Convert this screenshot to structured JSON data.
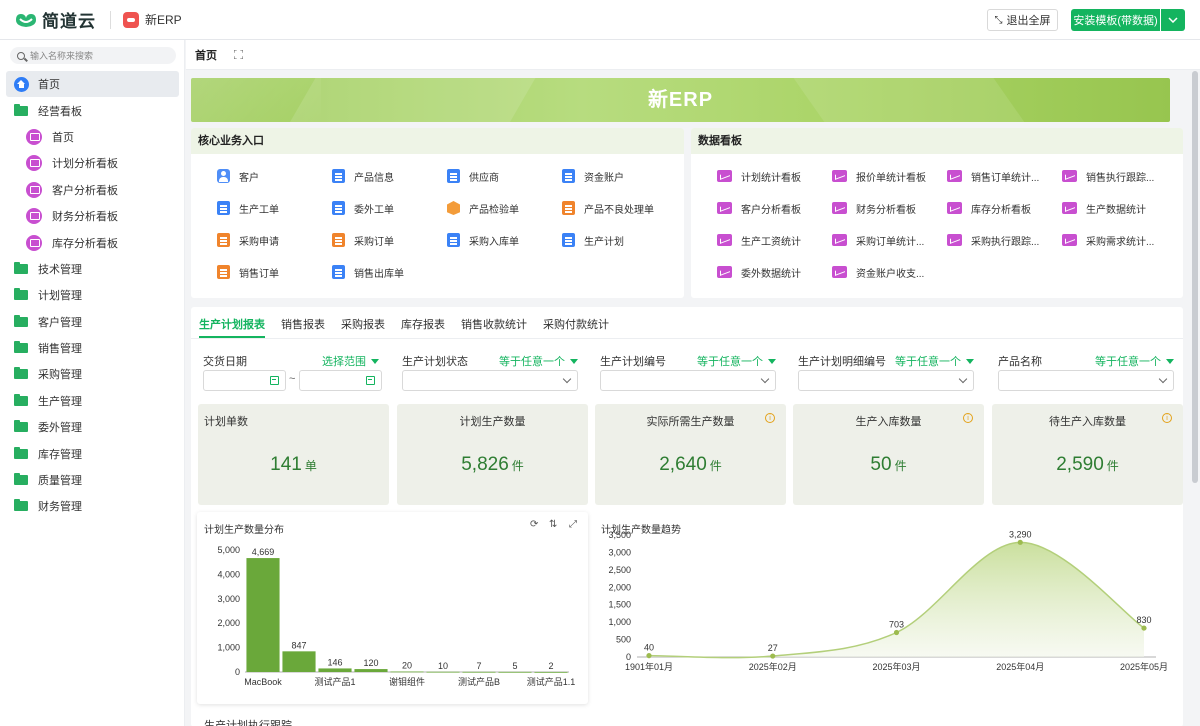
{
  "topbar": {
    "brand": "简道云",
    "app_name": "新ERP",
    "exit_fullscreen": "退出全屏",
    "install_template": "安装模板(带数据)"
  },
  "sidebar": {
    "search_placeholder": "输入名称来搜索",
    "items": [
      {
        "label": "首页",
        "icon": "home-icon"
      },
      {
        "label": "经营看板",
        "icon": "folder-icon"
      },
      {
        "label": "首页",
        "icon": "dashboard-icon"
      },
      {
        "label": "计划分析看板",
        "icon": "dashboard-icon"
      },
      {
        "label": "客户分析看板",
        "icon": "dashboard-icon"
      },
      {
        "label": "财务分析看板",
        "icon": "dashboard-icon"
      },
      {
        "label": "库存分析看板",
        "icon": "dashboard-icon"
      },
      {
        "label": "技术管理",
        "icon": "folder-icon"
      },
      {
        "label": "计划管理",
        "icon": "folder-icon"
      },
      {
        "label": "客户管理",
        "icon": "folder-icon"
      },
      {
        "label": "销售管理",
        "icon": "folder-icon"
      },
      {
        "label": "采购管理",
        "icon": "folder-icon"
      },
      {
        "label": "生产管理",
        "icon": "folder-icon"
      },
      {
        "label": "委外管理",
        "icon": "folder-icon"
      },
      {
        "label": "库存管理",
        "icon": "folder-icon"
      },
      {
        "label": "质量管理",
        "icon": "folder-icon"
      },
      {
        "label": "财务管理",
        "icon": "folder-icon"
      }
    ]
  },
  "page_tab": "首页",
  "banner_title": "新ERP",
  "core": {
    "title": "核心业务入口",
    "items": [
      {
        "label": "客户",
        "icon": "person"
      },
      {
        "label": "产品信息",
        "icon": "blue"
      },
      {
        "label": "供应商",
        "icon": "blue"
      },
      {
        "label": "资金账户",
        "icon": "blue"
      },
      {
        "label": "生产工单",
        "icon": "blue"
      },
      {
        "label": "委外工单",
        "icon": "blue"
      },
      {
        "label": "产品检验单",
        "icon": "box"
      },
      {
        "label": "产品不良处理单",
        "icon": "orange"
      },
      {
        "label": "采购申请",
        "icon": "orange"
      },
      {
        "label": "采购订单",
        "icon": "orange"
      },
      {
        "label": "采购入库单",
        "icon": "blue"
      },
      {
        "label": "生产计划",
        "icon": "blue"
      },
      {
        "label": "销售订单",
        "icon": "orange"
      },
      {
        "label": "销售出库单",
        "icon": "blue"
      }
    ]
  },
  "dashboards": {
    "title": "数据看板",
    "items": [
      "计划统计看板",
      "报价单统计看板",
      "销售订单统计...",
      "销售执行跟踪...",
      "客户分析看板",
      "财务分析看板",
      "库存分析看板",
      "生产数据统计",
      "生产工资统计",
      "采购订单统计...",
      "采购执行跟踪...",
      "采购需求统计...",
      "委外数据统计",
      "资金账户收支..."
    ]
  },
  "report_tabs": [
    "生产计划报表",
    "销售报表",
    "采购报表",
    "库存报表",
    "销售收款统计",
    "采购付款统计"
  ],
  "filters": [
    {
      "label": "交货日期",
      "op": "选择范围",
      "tilde": "~"
    },
    {
      "label": "生产计划状态",
      "op": "等于任意一个"
    },
    {
      "label": "生产计划编号",
      "op": "等于任意一个"
    },
    {
      "label": "生产计划明细编号",
      "op": "等于任意一个"
    },
    {
      "label": "产品名称",
      "op": "等于任意一个"
    }
  ],
  "kpis": [
    {
      "label": "计划单数",
      "value": "141",
      "unit": "单",
      "info": false
    },
    {
      "label": "计划生产数量",
      "value": "5,826",
      "unit": "件",
      "info": false
    },
    {
      "label": "实际所需生产数量",
      "value": "2,640",
      "unit": "件",
      "info": true
    },
    {
      "label": "生产入库数量",
      "value": "50",
      "unit": "件",
      "info": true
    },
    {
      "label": "待生产入库数量",
      "value": "2,590",
      "unit": "件",
      "info": true
    }
  ],
  "section_next": "生产计划执行跟踪",
  "colors": {
    "accent": "#14b45f",
    "bar": "#6aa83a",
    "area_line": "#b3cf7a"
  },
  "chart_data": [
    {
      "type": "bar",
      "title": "计划生产数量分布",
      "categories": [
        "MacBook",
        "",
        "测试产品1",
        "",
        "谢钼组件",
        "",
        "测试产品B",
        "",
        "测试产品1.1"
      ],
      "values": [
        4669,
        847,
        146,
        120,
        20,
        10,
        7,
        5,
        2
      ],
      "value_labels": [
        "4,669",
        "847",
        "146",
        "120",
        "20",
        "10",
        "7",
        "5",
        "2"
      ],
      "ylim": [
        0,
        5000
      ],
      "yticks": [
        "0",
        "1,000",
        "2,000",
        "3,000",
        "4,000",
        "5,000"
      ]
    },
    {
      "type": "area",
      "title": "计划生产数量趋势",
      "x": [
        "1901年01月",
        "2025年02月",
        "2025年03月",
        "2025年04月",
        "2025年05月"
      ],
      "values": [
        40,
        27,
        703,
        3290,
        830
      ],
      "value_labels": [
        "40",
        "27",
        "703",
        "3,290",
        "830"
      ],
      "ylim": [
        0,
        3500
      ],
      "yticks": [
        "0",
        "500",
        "1,000",
        "1,500",
        "2,000",
        "2,500",
        "3,000",
        "3,500"
      ]
    }
  ]
}
